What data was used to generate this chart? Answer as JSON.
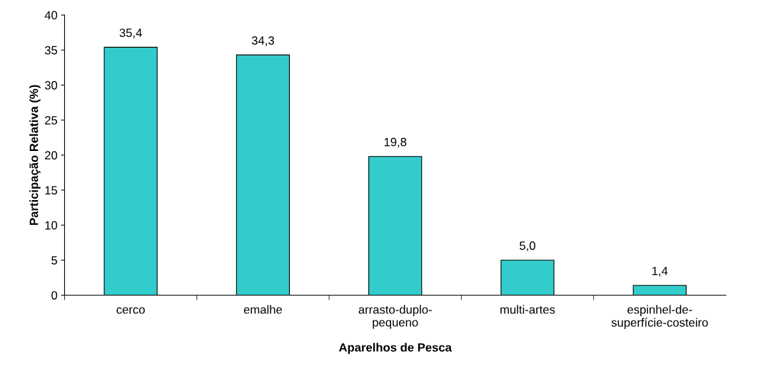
{
  "chart_data": {
    "type": "bar",
    "xlabel": "Aparelhos de Pesca",
    "ylabel": "Participação Relativa (%)",
    "categories": [
      "cerco",
      "emalhe",
      "arrasto-duplo-\npequeno",
      "multi-artes",
      "espinhel-de-\nsuperfície-costeiro"
    ],
    "values": [
      35.4,
      34.3,
      19.8,
      5.0,
      1.4
    ],
    "value_labels": [
      "35,4",
      "34,3",
      "19,8",
      "5,0",
      "1,4"
    ],
    "color": "#33cccc",
    "ylim": [
      0,
      40
    ],
    "yticks": [
      0,
      5,
      10,
      15,
      20,
      25,
      30,
      35,
      40
    ],
    "grid": false
  }
}
